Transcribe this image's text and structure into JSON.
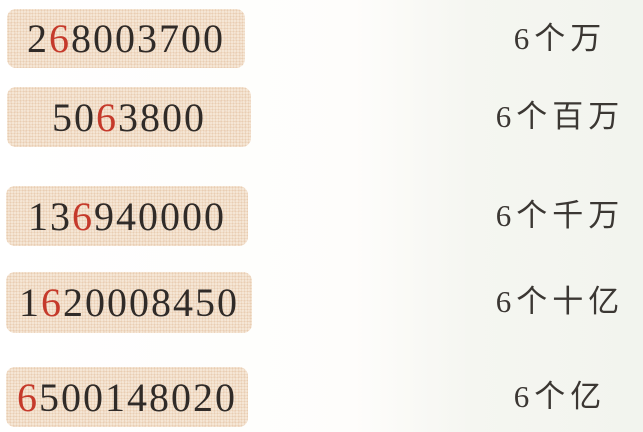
{
  "exercise": {
    "description_of_task": "match-number-to-place-value",
    "rows": [
      {
        "number": {
          "full": "268003700",
          "prefix": "2",
          "red_digit": "6",
          "suffix": "8003700"
        },
        "label": "6个万"
      },
      {
        "number": {
          "full": "5063800",
          "prefix": "50",
          "red_digit": "6",
          "suffix": "3800"
        },
        "label": "6个百万"
      },
      {
        "number": {
          "full": "136940000",
          "prefix": "13",
          "red_digit": "6",
          "suffix": "940000"
        },
        "label": "6个千万"
      },
      {
        "number": {
          "full": "1620008450",
          "prefix": "1",
          "red_digit": "6",
          "suffix": "20008450"
        },
        "label": "6个十亿"
      },
      {
        "number": {
          "full": "6500148020",
          "prefix": "",
          "red_digit": "6",
          "suffix": "500148020"
        },
        "label": "6个亿"
      }
    ],
    "colors": {
      "highlight_digit": "#c53a2b",
      "number_text": "#302b28",
      "label_text": "#3b3733",
      "card_background": "#f5e6d5",
      "card_dot": "#e9cdb2"
    }
  }
}
